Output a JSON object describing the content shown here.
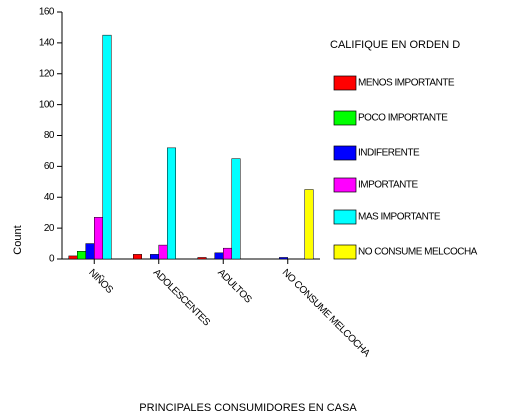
{
  "chart_data": {
    "type": "bar",
    "legend_title": "CALIFIQUE EN ORDEN D",
    "xlabel": "PRINCIPALES CONSUMIDORES EN CASA",
    "ylabel": "Count",
    "categories": [
      "NIÑOS",
      "ADOLESCENTES",
      "ADULTOS",
      "NO CONSUME MELCOCHA"
    ],
    "series": [
      {
        "name": "MENOS IMPORTANTE",
        "color": "#ff0000",
        "values": [
          2,
          3,
          1,
          0
        ]
      },
      {
        "name": "POCO IMPORTANTE",
        "color": "#00ff00",
        "values": [
          5,
          0,
          0,
          0
        ]
      },
      {
        "name": "INDIFERENTE",
        "color": "#0000ff",
        "values": [
          10,
          3,
          4,
          1
        ]
      },
      {
        "name": "IMPORTANTE",
        "color": "#ff00ff",
        "values": [
          27,
          9,
          7,
          0
        ]
      },
      {
        "name": "MAS IMPORTANTE",
        "color": "#00ffff",
        "values": [
          145,
          72,
          65,
          0
        ]
      },
      {
        "name": "NO CONSUME MELCOCHA",
        "color": "#ffff00",
        "values": [
          0,
          0,
          0,
          45
        ]
      }
    ],
    "ylim": [
      0,
      160
    ],
    "yticks": [
      0,
      20,
      40,
      60,
      80,
      100,
      120,
      140,
      160
    ]
  }
}
